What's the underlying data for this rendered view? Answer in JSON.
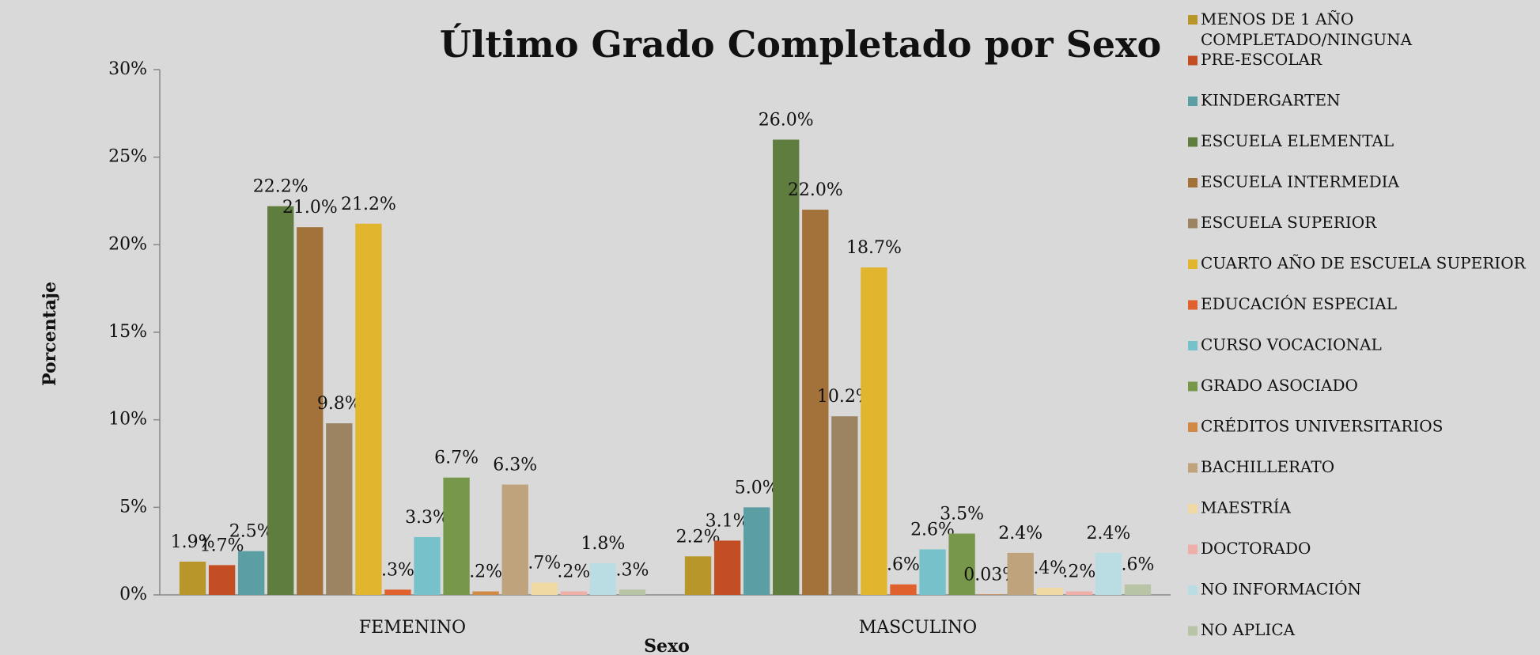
{
  "chart_data": {
    "type": "bar",
    "title": "Último Grado Completado por Sexo",
    "x_label": "Sexo",
    "y_label": "Porcentaje",
    "categories": [
      "FEMENINO",
      "MASCULINO"
    ],
    "ylim": [
      0,
      30
    ],
    "yticks": [
      {
        "value": 0,
        "label": "0%"
      },
      {
        "value": 5,
        "label": "5%"
      },
      {
        "value": 10,
        "label": "10%"
      },
      {
        "value": 15,
        "label": "15%"
      },
      {
        "value": 20,
        "label": "20%"
      },
      {
        "value": 25,
        "label": "25%"
      },
      {
        "value": 30,
        "label": "30%"
      }
    ],
    "grid": false,
    "legend": "right",
    "series": [
      {
        "name": "MENOS DE 1 AÑO COMPLETADO/NINGUNA",
        "color": "#B8962A",
        "values": [
          1.9,
          2.2
        ],
        "value_labels": [
          "1.9%",
          "2.2%"
        ]
      },
      {
        "name": "PRE-ESCOLAR",
        "color": "#C44E23",
        "values": [
          1.7,
          3.1
        ],
        "value_labels": [
          "1.7%",
          "3.1%"
        ]
      },
      {
        "name": "KINDERGARTEN",
        "color": "#5B9EA4",
        "values": [
          2.5,
          5.0
        ],
        "value_labels": [
          "2.5%",
          "5.0%"
        ]
      },
      {
        "name": "ESCUELA ELEMENTAL",
        "color": "#5F7D3E",
        "values": [
          22.2,
          26.0
        ],
        "value_labels": [
          "22.2%",
          "26.0%"
        ]
      },
      {
        "name": "ESCUELA INTERMEDIA",
        "color": "#A3713A",
        "values": [
          21.0,
          22.0
        ],
        "value_labels": [
          "21.0%",
          "22.0%"
        ]
      },
      {
        "name": "ESCUELA SUPERIOR",
        "color": "#9C8463",
        "values": [
          9.8,
          10.2
        ],
        "value_labels": [
          "9.8%",
          "10.2%"
        ]
      },
      {
        "name": "CUARTO AÑO DE ESCUELA SUPERIOR",
        "color": "#E2B52E",
        "values": [
          21.2,
          18.7
        ],
        "value_labels": [
          "21.2%",
          "18.7%"
        ]
      },
      {
        "name": "EDUCACIÓN ESPECIAL",
        "color": "#E0602E",
        "values": [
          0.3,
          0.6
        ],
        "value_labels": [
          ".3%",
          ".6%"
        ]
      },
      {
        "name": "CURSO VOCACIONAL",
        "color": "#77C2CA",
        "values": [
          3.3,
          2.6
        ],
        "value_labels": [
          "3.3%",
          "2.6%"
        ]
      },
      {
        "name": "GRADO ASOCIADO",
        "color": "#77984A",
        "values": [
          6.7,
          3.5
        ],
        "value_labels": [
          "6.7%",
          "3.5%"
        ]
      },
      {
        "name": "CRÉDITOS UNIVERSITARIOS",
        "color": "#D08A45",
        "values": [
          0.2,
          0.03
        ],
        "value_labels": [
          ".2%",
          "0.03%"
        ]
      },
      {
        "name": "BACHILLERATO",
        "color": "#BFA37D",
        "values": [
          6.3,
          2.4
        ],
        "value_labels": [
          "6.3%",
          "2.4%"
        ]
      },
      {
        "name": "MAESTRÍA",
        "color": "#F1D9A3",
        "values": [
          0.7,
          0.4
        ],
        "value_labels": [
          ".7%",
          ".4%"
        ]
      },
      {
        "name": "DOCTORADO",
        "color": "#EFAEA8",
        "values": [
          0.2,
          0.2
        ],
        "value_labels": [
          ".2%",
          ".2%"
        ]
      },
      {
        "name": "NO INFORMACIÓN",
        "color": "#B9DDE3",
        "values": [
          1.8,
          2.4
        ],
        "value_labels": [
          "1.8%",
          "2.4%"
        ]
      },
      {
        "name": "NO APLICA",
        "color": "#B7C4A5",
        "values": [
          0.3,
          0.6
        ],
        "value_labels": [
          ".3%",
          ".6%"
        ]
      }
    ]
  }
}
